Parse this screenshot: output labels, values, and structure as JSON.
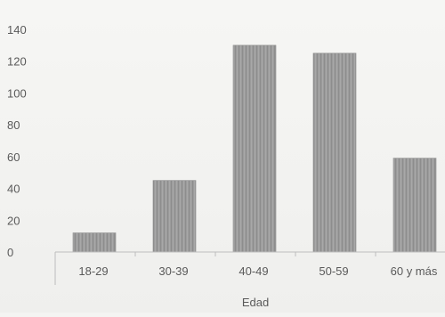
{
  "chart_data": {
    "type": "bar",
    "categories": [
      "18-29",
      "30-39",
      "40-49",
      "50-59",
      "60 y más"
    ],
    "values": [
      12,
      45,
      130,
      125,
      59
    ],
    "title": "",
    "xlabel": "Edad",
    "ylabel": "",
    "ylim": [
      0,
      140
    ],
    "yticks": [
      "0",
      "20",
      "40",
      "60",
      "80",
      "100",
      "120",
      "140"
    ],
    "grid": false,
    "legend": "none",
    "bar_color": "#9a9a9a",
    "axis_color": "#bdbdbd",
    "text_color": "#5a5a5a"
  }
}
